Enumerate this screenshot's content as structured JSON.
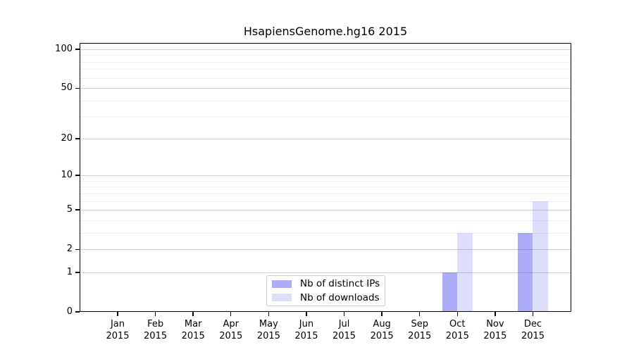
{
  "chart_data": {
    "type": "bar",
    "title": "HsapiensGenome.hg16 2015",
    "categories": [
      "Jan",
      "Feb",
      "Mar",
      "Apr",
      "May",
      "Jun",
      "Jul",
      "Aug",
      "Sep",
      "Oct",
      "Nov",
      "Dec"
    ],
    "xtick_year": "2015",
    "series": [
      {
        "name": "Nb of distinct IPs",
        "color": "rgba(15,15,235,0.345)",
        "values": [
          0,
          0,
          0,
          0,
          0,
          0,
          0,
          0,
          0,
          1,
          0,
          3
        ]
      },
      {
        "name": "Nb of downloads",
        "color": "rgba(15,15,235,0.14)",
        "values": [
          0,
          0,
          0,
          0,
          0,
          0,
          0,
          0,
          0,
          3,
          0,
          6
        ]
      }
    ],
    "yscale": "log1p",
    "yticks": [
      0,
      1,
      2,
      5,
      10,
      20,
      50,
      100
    ],
    "minor_yticks": [
      3,
      4,
      6,
      7,
      8,
      9,
      30,
      40,
      60,
      70,
      80,
      90
    ],
    "ylim": [
      0,
      100
    ],
    "xlabel": "",
    "ylabel": "",
    "grid": true,
    "legend_position": "lower-center-inside"
  }
}
